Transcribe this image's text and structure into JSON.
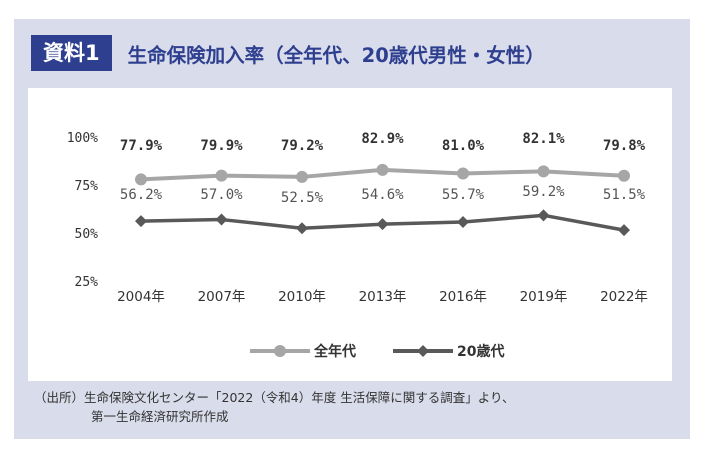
{
  "header": {
    "badge": "資料1",
    "title": "生命保険加入率（全年代、20歳代男性・女性）"
  },
  "source": {
    "line1": "（出所）生命保険文化センター「2022（令和4）年度 生活保障に関する調査」より、",
    "line2": "第一生命経済研究所作成"
  },
  "colors": {
    "frame": "#d9dcea",
    "accent": "#2e3f8f",
    "series_all": "#a6a6a6",
    "series_20s": "#595959"
  },
  "chart_data": {
    "type": "line",
    "categories": [
      "2004年",
      "2007年",
      "2010年",
      "2013年",
      "2016年",
      "2019年",
      "2022年"
    ],
    "yticks": [
      "100%",
      "75%",
      "50%",
      "25%"
    ],
    "ylim": [
      25,
      100
    ],
    "grid": false,
    "legend_position": "bottom",
    "series": [
      {
        "name": "全年代",
        "color": "#a6a6a6",
        "values": [
          77.9,
          79.9,
          79.2,
          82.9,
          81.0,
          82.1,
          79.8
        ],
        "labels": [
          "77.9%",
          "79.9%",
          "79.2%",
          "82.9%",
          "81.0%",
          "82.1%",
          "79.8%"
        ]
      },
      {
        "name": "20歳代",
        "color": "#595959",
        "values": [
          56.2,
          57.0,
          52.5,
          54.6,
          55.7,
          59.2,
          51.5
        ],
        "labels": [
          "56.2%",
          "57.0%",
          "52.5%",
          "54.6%",
          "55.7%",
          "59.2%",
          "51.5%"
        ]
      }
    ]
  }
}
